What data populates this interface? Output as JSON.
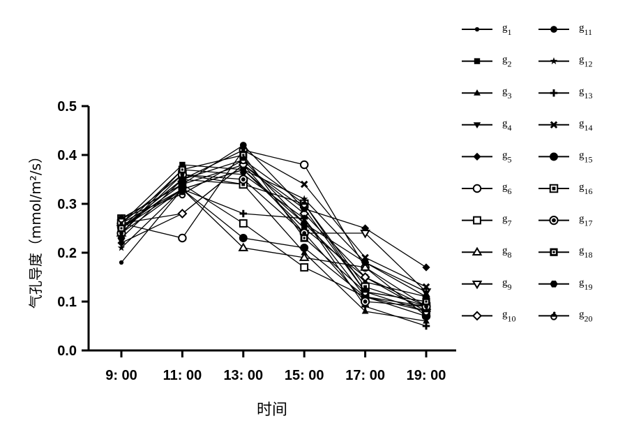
{
  "chart_data": {
    "type": "line",
    "title": "",
    "xlabel": "时间",
    "ylabel": "气孔导度（mmol/m²/s）",
    "categories": [
      "9: 00",
      "11: 00",
      "13: 00",
      "15: 00",
      "17: 00",
      "19: 00"
    ],
    "ylim": [
      0,
      0.5
    ],
    "yticks": [
      "0.0",
      "0.1",
      "0.2",
      "0.3",
      "0.4",
      "0.5"
    ],
    "grid": false,
    "legend_position": "right",
    "series": [
      {
        "name": "g1",
        "marker": "dot-small",
        "values": [
          0.18,
          0.33,
          0.37,
          0.26,
          0.14,
          0.11
        ]
      },
      {
        "name": "g2",
        "marker": "square-filled",
        "values": [
          0.26,
          0.38,
          0.37,
          0.25,
          0.15,
          0.09
        ]
      },
      {
        "name": "g3",
        "marker": "triangle-filled",
        "values": [
          0.25,
          0.35,
          0.34,
          0.2,
          0.08,
          0.06
        ]
      },
      {
        "name": "g4",
        "marker": "triangle-down",
        "values": [
          0.24,
          0.37,
          0.36,
          0.27,
          0.11,
          0.09
        ]
      },
      {
        "name": "g5",
        "marker": "diamond-filled",
        "values": [
          0.22,
          0.28,
          0.38,
          0.29,
          0.25,
          0.17
        ]
      },
      {
        "name": "g6",
        "marker": "circle-open",
        "values": [
          0.26,
          0.23,
          0.41,
          0.38,
          0.17,
          0.07
        ]
      },
      {
        "name": "g7",
        "marker": "square-open",
        "values": [
          0.27,
          0.34,
          0.26,
          0.17,
          0.11,
          0.08
        ]
      },
      {
        "name": "g8",
        "marker": "triangle-open",
        "values": [
          0.24,
          0.33,
          0.21,
          0.19,
          0.17,
          0.09
        ]
      },
      {
        "name": "g9",
        "marker": "triangle-down-open",
        "values": [
          0.25,
          0.34,
          0.38,
          0.24,
          0.24,
          0.12
        ]
      },
      {
        "name": "g10",
        "marker": "diamond-open",
        "values": [
          0.26,
          0.28,
          0.38,
          0.28,
          0.15,
          0.08
        ]
      },
      {
        "name": "g11",
        "marker": "circle-filled",
        "values": [
          0.27,
          0.34,
          0.42,
          0.29,
          0.12,
          0.1
        ]
      },
      {
        "name": "g12",
        "marker": "star",
        "values": [
          0.21,
          0.33,
          0.37,
          0.31,
          0.18,
          0.12
        ]
      },
      {
        "name": "g13",
        "marker": "plus",
        "values": [
          0.26,
          0.33,
          0.28,
          0.27,
          0.09,
          0.05
        ]
      },
      {
        "name": "g14",
        "marker": "cross",
        "values": [
          0.25,
          0.35,
          0.41,
          0.34,
          0.19,
          0.13
        ]
      },
      {
        "name": "g15",
        "marker": "circle-large",
        "values": [
          0.25,
          0.33,
          0.23,
          0.21,
          0.11,
          0.07
        ]
      },
      {
        "name": "g16",
        "marker": "square-boxed",
        "values": [
          0.26,
          0.36,
          0.34,
          0.3,
          0.13,
          0.09
        ]
      },
      {
        "name": "g17",
        "marker": "circle-ring",
        "values": [
          0.24,
          0.36,
          0.35,
          0.24,
          0.1,
          0.09
        ]
      },
      {
        "name": "g18",
        "marker": "square-ring",
        "values": [
          0.25,
          0.37,
          0.4,
          0.23,
          0.12,
          0.1
        ]
      },
      {
        "name": "g19",
        "marker": "hexagon-filled",
        "values": [
          0.23,
          0.35,
          0.39,
          0.26,
          0.18,
          0.11
        ]
      },
      {
        "name": "g20",
        "marker": "half-circle",
        "values": [
          0.27,
          0.32,
          0.39,
          0.3,
          0.12,
          0.08
        ]
      }
    ]
  },
  "legend": {
    "items": [
      {
        "base": "g",
        "sub": "1"
      },
      {
        "base": "g",
        "sub": "2"
      },
      {
        "base": "g",
        "sub": "3"
      },
      {
        "base": "g",
        "sub": "4"
      },
      {
        "base": "g",
        "sub": "5"
      },
      {
        "base": "g",
        "sub": "6"
      },
      {
        "base": "g",
        "sub": "7"
      },
      {
        "base": "g",
        "sub": "8"
      },
      {
        "base": "g",
        "sub": "9"
      },
      {
        "base": "g",
        "sub": "10"
      },
      {
        "base": "g",
        "sub": "11"
      },
      {
        "base": "g",
        "sub": "12"
      },
      {
        "base": "g",
        "sub": "13"
      },
      {
        "base": "g",
        "sub": "14"
      },
      {
        "base": "g",
        "sub": "15"
      },
      {
        "base": "g",
        "sub": "16"
      },
      {
        "base": "g",
        "sub": "17"
      },
      {
        "base": "g",
        "sub": "18"
      },
      {
        "base": "g",
        "sub": "19"
      },
      {
        "base": "g",
        "sub": "20"
      }
    ]
  },
  "colors": {
    "line": "#000000",
    "background": "#ffffff"
  }
}
